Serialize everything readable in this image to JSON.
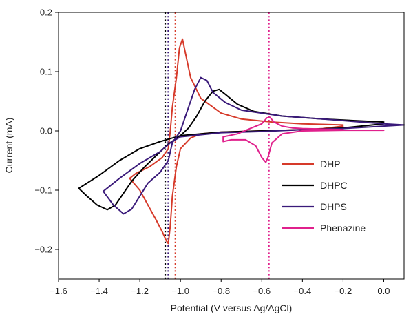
{
  "chart_data": {
    "type": "line",
    "title": "",
    "xlabel": "Potential (V versus Ag/AgCl)",
    "ylabel": "Current (mA)",
    "xlim": [
      -1.6,
      0.1
    ],
    "ylim": [
      -0.25,
      0.2
    ],
    "x_ticks": [
      -1.6,
      -1.4,
      -1.2,
      -1.0,
      -0.8,
      -0.6,
      -0.4,
      -0.2,
      0.0
    ],
    "x_tick_labels": [
      "−1.6",
      "−1.4",
      "−1.2",
      "−1.0",
      "−0.8",
      "−0.6",
      "−0.4",
      "−0.2",
      "0.0"
    ],
    "y_ticks": [
      -0.2,
      -0.1,
      0.0,
      0.1,
      0.2
    ],
    "y_tick_labels": [
      "−0.2",
      "−0.1",
      "0.0",
      "0.1",
      "0.2"
    ],
    "grid": false,
    "legend_position": "right",
    "reference_lines": [
      {
        "series": "DHPC",
        "x": -1.075,
        "color": "#000000"
      },
      {
        "series": "DHPS",
        "x": -1.06,
        "color": "#3a1a7a"
      },
      {
        "series": "DHP",
        "x": -1.025,
        "color": "#d63a2a"
      },
      {
        "series": "Phenazine",
        "x": -0.565,
        "color": "#e0208c"
      }
    ],
    "series": [
      {
        "name": "DHP",
        "color": "#d63a2a",
        "points": [
          [
            -0.2,
            0.008
          ],
          [
            -0.3,
            0.004
          ],
          [
            -0.4,
            0.002
          ],
          [
            -0.6,
            0.0
          ],
          [
            -0.8,
            -0.002
          ],
          [
            -0.9,
            -0.005
          ],
          [
            -0.95,
            -0.012
          ],
          [
            -1.0,
            -0.03
          ],
          [
            -1.02,
            -0.06
          ],
          [
            -1.04,
            -0.11
          ],
          [
            -1.05,
            -0.16
          ],
          [
            -1.06,
            -0.19
          ],
          [
            -1.07,
            -0.185
          ],
          [
            -1.09,
            -0.17
          ],
          [
            -1.12,
            -0.15
          ],
          [
            -1.16,
            -0.125
          ],
          [
            -1.2,
            -0.1
          ],
          [
            -1.25,
            -0.08
          ],
          [
            -1.22,
            -0.072
          ],
          [
            -1.15,
            -0.06
          ],
          [
            -1.09,
            -0.045
          ],
          [
            -1.06,
            -0.03
          ],
          [
            -1.05,
            0.0
          ],
          [
            -1.04,
            0.04
          ],
          [
            -1.02,
            0.09
          ],
          [
            -1.005,
            0.14
          ],
          [
            -0.99,
            0.155
          ],
          [
            -0.975,
            0.13
          ],
          [
            -0.95,
            0.09
          ],
          [
            -0.9,
            0.055
          ],
          [
            -0.8,
            0.03
          ],
          [
            -0.7,
            0.02
          ],
          [
            -0.55,
            0.015
          ],
          [
            -0.4,
            0.012
          ],
          [
            -0.2,
            0.01
          ]
        ]
      },
      {
        "name": "DHPC",
        "color": "#000000",
        "points": [
          [
            0.0,
            0.012
          ],
          [
            -0.2,
            0.005
          ],
          [
            -0.4,
            0.002
          ],
          [
            -0.6,
            0.0
          ],
          [
            -0.8,
            -0.002
          ],
          [
            -1.0,
            -0.008
          ],
          [
            -1.1,
            -0.018
          ],
          [
            -1.2,
            -0.03
          ],
          [
            -1.3,
            -0.05
          ],
          [
            -1.4,
            -0.075
          ],
          [
            -1.5,
            -0.097
          ],
          [
            -1.46,
            -0.11
          ],
          [
            -1.41,
            -0.125
          ],
          [
            -1.36,
            -0.133
          ],
          [
            -1.32,
            -0.125
          ],
          [
            -1.28,
            -0.105
          ],
          [
            -1.24,
            -0.085
          ],
          [
            -1.18,
            -0.062
          ],
          [
            -1.12,
            -0.042
          ],
          [
            -1.06,
            -0.022
          ],
          [
            -1.0,
            -0.008
          ],
          [
            -0.96,
            0.005
          ],
          [
            -0.92,
            0.025
          ],
          [
            -0.88,
            0.05
          ],
          [
            -0.84,
            0.067
          ],
          [
            -0.81,
            0.07
          ],
          [
            -0.78,
            0.062
          ],
          [
            -0.72,
            0.045
          ],
          [
            -0.64,
            0.033
          ],
          [
            -0.5,
            0.025
          ],
          [
            -0.3,
            0.02
          ],
          [
            0.0,
            0.015
          ]
        ]
      },
      {
        "name": "DHPS",
        "color": "#3a1a7a",
        "points": [
          [
            0.1,
            0.01
          ],
          [
            0.0,
            0.008
          ],
          [
            -0.2,
            0.004
          ],
          [
            -0.4,
            0.002
          ],
          [
            -0.6,
            -0.001
          ],
          [
            -0.8,
            -0.003
          ],
          [
            -1.0,
            -0.01
          ],
          [
            -1.05,
            -0.02
          ],
          [
            -1.1,
            -0.035
          ],
          [
            -1.2,
            -0.055
          ],
          [
            -1.3,
            -0.08
          ],
          [
            -1.38,
            -0.102
          ],
          [
            -1.33,
            -0.125
          ],
          [
            -1.28,
            -0.14
          ],
          [
            -1.24,
            -0.132
          ],
          [
            -1.2,
            -0.11
          ],
          [
            -1.16,
            -0.088
          ],
          [
            -1.1,
            -0.07
          ],
          [
            -1.06,
            -0.05
          ],
          [
            -1.04,
            -0.02
          ],
          [
            -1.0,
            0.0
          ],
          [
            -0.97,
            0.03
          ],
          [
            -0.93,
            0.07
          ],
          [
            -0.9,
            0.09
          ],
          [
            -0.87,
            0.085
          ],
          [
            -0.84,
            0.065
          ],
          [
            -0.78,
            0.048
          ],
          [
            -0.7,
            0.035
          ],
          [
            -0.5,
            0.025
          ],
          [
            -0.3,
            0.02
          ],
          [
            0.0,
            0.012
          ],
          [
            0.1,
            0.01
          ]
        ]
      },
      {
        "name": "Phenazine",
        "color": "#e0208c",
        "points": [
          [
            0.0,
            0.001
          ],
          [
            -0.2,
            0.001
          ],
          [
            -0.4,
            0.0
          ],
          [
            -0.5,
            -0.005
          ],
          [
            -0.55,
            -0.02
          ],
          [
            -0.57,
            -0.045
          ],
          [
            -0.58,
            -0.053
          ],
          [
            -0.6,
            -0.045
          ],
          [
            -0.63,
            -0.025
          ],
          [
            -0.68,
            -0.015
          ],
          [
            -0.75,
            -0.015
          ],
          [
            -0.79,
            -0.018
          ],
          [
            -0.79,
            -0.01
          ],
          [
            -0.72,
            -0.005
          ],
          [
            -0.65,
            0.005
          ],
          [
            -0.6,
            0.012
          ],
          [
            -0.575,
            0.022
          ],
          [
            -0.56,
            0.023
          ],
          [
            -0.54,
            0.015
          ],
          [
            -0.5,
            0.008
          ],
          [
            -0.45,
            0.005
          ],
          [
            -0.4,
            0.004
          ],
          [
            -0.3,
            0.003
          ],
          [
            -0.2,
            0.002
          ]
        ]
      }
    ]
  }
}
